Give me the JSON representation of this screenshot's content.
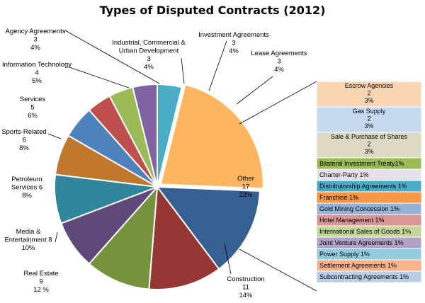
{
  "chart_data": {
    "type": "pie",
    "title": "Types of Disputed Contracts (2012)",
    "start_angle_deg": 90,
    "direction": "clockwise",
    "colors": {
      "escrow": "#fcd5b5",
      "gas": "#c6d9f1",
      "share": "#ddd9c3",
      "bit": "#9bbb59",
      "charter": "#e6e0ec",
      "distrib": "#4bacc6",
      "franchise": "#f79646",
      "goldmining": "#95b3d7",
      "hotel": "#d99694",
      "intlsales": "#c3d69b",
      "jv": "#b3a2c7",
      "power": "#93cddd",
      "settlement": "#fab28f",
      "subcontract": "#b9cde5"
    },
    "slices": [
      {
        "key": "lease",
        "lines": [
          "Lease Agreements",
          "3",
          "4%"
        ],
        "value": 3,
        "percent": "4%",
        "color": "#4bacc6"
      },
      {
        "key": "other",
        "lines": [
          "Other",
          "17",
          "22%"
        ],
        "value": 17,
        "percent": "22%",
        "color": "#fdb55f"
      },
      {
        "key": "construction",
        "lines": [
          "Construction",
          "11",
          "14%"
        ],
        "value": 11,
        "percent": "14%",
        "color": "#376092"
      },
      {
        "key": "realestate",
        "lines": [
          "Real Estate",
          "9",
          "12 %"
        ],
        "value": 9,
        "percent": "12 %",
        "color": "#953735"
      },
      {
        "key": "media",
        "lines": [
          "Media &",
          "Entertainment 8",
          "",
          "10%"
        ],
        "value": 8,
        "percent": "10%",
        "color": "#76923c"
      },
      {
        "key": "petroleum",
        "lines": [
          "Petroleum",
          "Services 6",
          "",
          "8%"
        ],
        "value": 6,
        "percent": "8%",
        "color": "#5f497a"
      },
      {
        "key": "sports",
        "lines": [
          "Sports-Related",
          "6",
          "8%"
        ],
        "value": 6,
        "percent": "8%",
        "color": "#31859c"
      },
      {
        "key": "services",
        "lines": [
          "Services",
          "5",
          "6%"
        ],
        "value": 5,
        "percent": "6%",
        "color": "#c0782e"
      },
      {
        "key": "it",
        "lines": [
          "Information Technology",
          "4",
          "5%"
        ],
        "value": 4,
        "percent": "5%",
        "color": "#4f81bd"
      },
      {
        "key": "agency",
        "lines": [
          "Agency Agreements",
          "3",
          "4%"
        ],
        "value": 3,
        "percent": "4%",
        "color": "#c0504d"
      },
      {
        "key": "industrial",
        "lines": [
          "Industrial, Commercial &",
          "Urban Development",
          "3",
          "4%"
        ],
        "value": 3,
        "percent": "4%",
        "color": "#9bbb59"
      },
      {
        "key": "investment",
        "lines": [
          "Investment Agreements",
          "3",
          "4%"
        ],
        "value": 3,
        "percent": "4%",
        "color": "#8064a2"
      }
    ],
    "other_breakdown": [
      {
        "key": "escrow",
        "lines": [
          "Escrow Agencies",
          "2",
          "3%"
        ],
        "value": 2,
        "percent": "3%"
      },
      {
        "key": "gas",
        "lines": [
          "Gas Supply",
          "2",
          "3%"
        ],
        "value": 2,
        "percent": "3%"
      },
      {
        "key": "share",
        "lines": [
          "Sale & Purchase of Shares",
          "2",
          "3%"
        ],
        "value": 2,
        "percent": "3%"
      },
      {
        "key": "bit",
        "lines": [
          "Bilateral Investment Treaty1%"
        ],
        "percent": "1%"
      },
      {
        "key": "charter",
        "lines": [
          "Charter-Party 1%"
        ],
        "percent": "1%"
      },
      {
        "key": "distrib",
        "lines": [
          "Distributorship Agreements 1%"
        ],
        "percent": "1%"
      },
      {
        "key": "franchise",
        "lines": [
          "Franchise 1%"
        ],
        "percent": "1%"
      },
      {
        "key": "goldmining",
        "lines": [
          "Gold Mining Concession 1%"
        ],
        "percent": "1%"
      },
      {
        "key": "hotel",
        "lines": [
          "Hotel Management 1%"
        ],
        "percent": "1%"
      },
      {
        "key": "intlsales",
        "lines": [
          "International Sales of Goods 1%"
        ],
        "percent": "1%"
      },
      {
        "key": "jv",
        "lines": [
          "Joint Venture Agreements 1%"
        ],
        "percent": "1%"
      },
      {
        "key": "power",
        "lines": [
          "Power Supply 1%"
        ],
        "percent": "1%"
      },
      {
        "key": "settlement",
        "lines": [
          "Settlement Agreements 1%"
        ],
        "percent": "1%"
      },
      {
        "key": "subcontract",
        "lines": [
          "Subcontracting Agreements 1%"
        ],
        "percent": "1%"
      }
    ]
  }
}
